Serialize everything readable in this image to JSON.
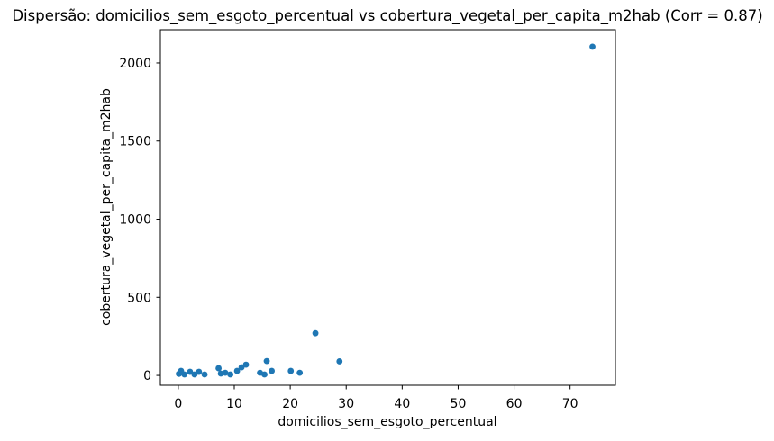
{
  "chart_data": {
    "type": "scatter",
    "title": "Dispersão: domicilios_sem_esgoto_percentual vs cobertura_vegetal_per_capita_m2hab (Corr = 0.87)",
    "xlabel": "domicilios_sem_esgoto_percentual",
    "ylabel": "cobertura_vegetal_per_capita_m2hab",
    "correlation": 0.87,
    "legend": null,
    "grid": false,
    "background_color": "#ffffff",
    "point_color": "#1f77b4",
    "xticks": [
      0,
      10,
      20,
      30,
      40,
      50,
      60,
      70
    ],
    "yticks": [
      0,
      500,
      1000,
      1500,
      2000
    ],
    "xlim": [
      -3.2,
      78.1
    ],
    "ylim": [
      -63,
      2213
    ],
    "points": [
      [
        0.1,
        10
      ],
      [
        0.5,
        29
      ],
      [
        1.1,
        6
      ],
      [
        2.1,
        23
      ],
      [
        2.9,
        6
      ],
      [
        3.7,
        23
      ],
      [
        4.7,
        6
      ],
      [
        7.2,
        46
      ],
      [
        7.6,
        12
      ],
      [
        8.4,
        17
      ],
      [
        9.3,
        6
      ],
      [
        10.5,
        29
      ],
      [
        11.3,
        52
      ],
      [
        12.1,
        69
      ],
      [
        14.6,
        17
      ],
      [
        15.4,
        6
      ],
      [
        15.8,
        92
      ],
      [
        16.7,
        29
      ],
      [
        20.1,
        29
      ],
      [
        21.7,
        17
      ],
      [
        24.5,
        270
      ],
      [
        28.8,
        90
      ],
      [
        74.0,
        2104
      ]
    ]
  }
}
